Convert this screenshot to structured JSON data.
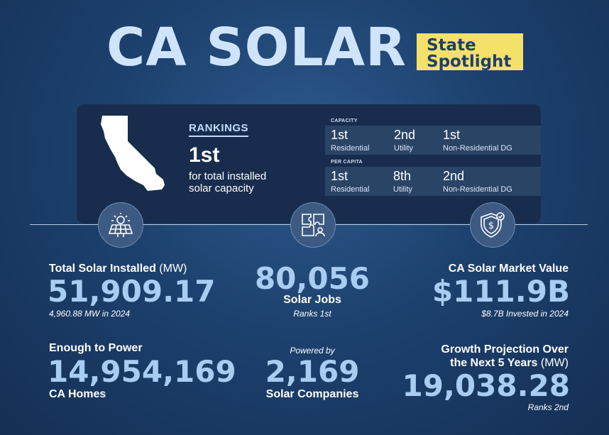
{
  "header": {
    "title": "CA SOLAR",
    "badge_line1": "State",
    "badge_line2": "Spotlight"
  },
  "rankings": {
    "label": "RANKINGS",
    "headline": "1st",
    "desc_line1": "for total installed",
    "desc_line2": "solar capacity",
    "capacity_label": "CAPACITY",
    "capacity": [
      {
        "value": "1st",
        "label": "Residential"
      },
      {
        "value": "2nd",
        "label": "Utility"
      },
      {
        "value": "1st",
        "label": "Non-Residential DG"
      }
    ],
    "per_capita_label": "PER CAPITA",
    "per_capita": [
      {
        "value": "1st",
        "label": "Residential"
      },
      {
        "value": "8th",
        "label": "Utility"
      },
      {
        "value": "2nd",
        "label": "Non-Residential DG"
      }
    ]
  },
  "icons": [
    "solar-panel-icon",
    "puzzle-person-icon",
    "shield-dollar-icon"
  ],
  "stats": {
    "installed": {
      "heading": "Total Solar Installed",
      "unit": "(MW)",
      "value": "51,909.17",
      "note": "4,960.88 MW in 2024"
    },
    "jobs": {
      "value": "80,056",
      "heading": "Solar Jobs",
      "note": "Ranks 1st"
    },
    "market": {
      "heading": "CA Solar Market Value",
      "value": "$111.9B",
      "note": "$8.7B Invested in 2024"
    },
    "homes": {
      "heading": "Enough to Power",
      "value": "14,954,169",
      "sub": "CA Homes"
    },
    "companies": {
      "pre": "Powered by",
      "value": "2,169",
      "heading": "Solar Companies"
    },
    "growth": {
      "heading_line1": "Growth Projection Over",
      "heading_line2": "the Next 5 Years",
      "unit": "(MW)",
      "value": "19,038.28",
      "note": "Ranks 2nd"
    }
  },
  "colors": {
    "background": "#1d416e",
    "accent": "#a9ccf2",
    "badge": "#f4e16a",
    "card": "#182d4d"
  }
}
